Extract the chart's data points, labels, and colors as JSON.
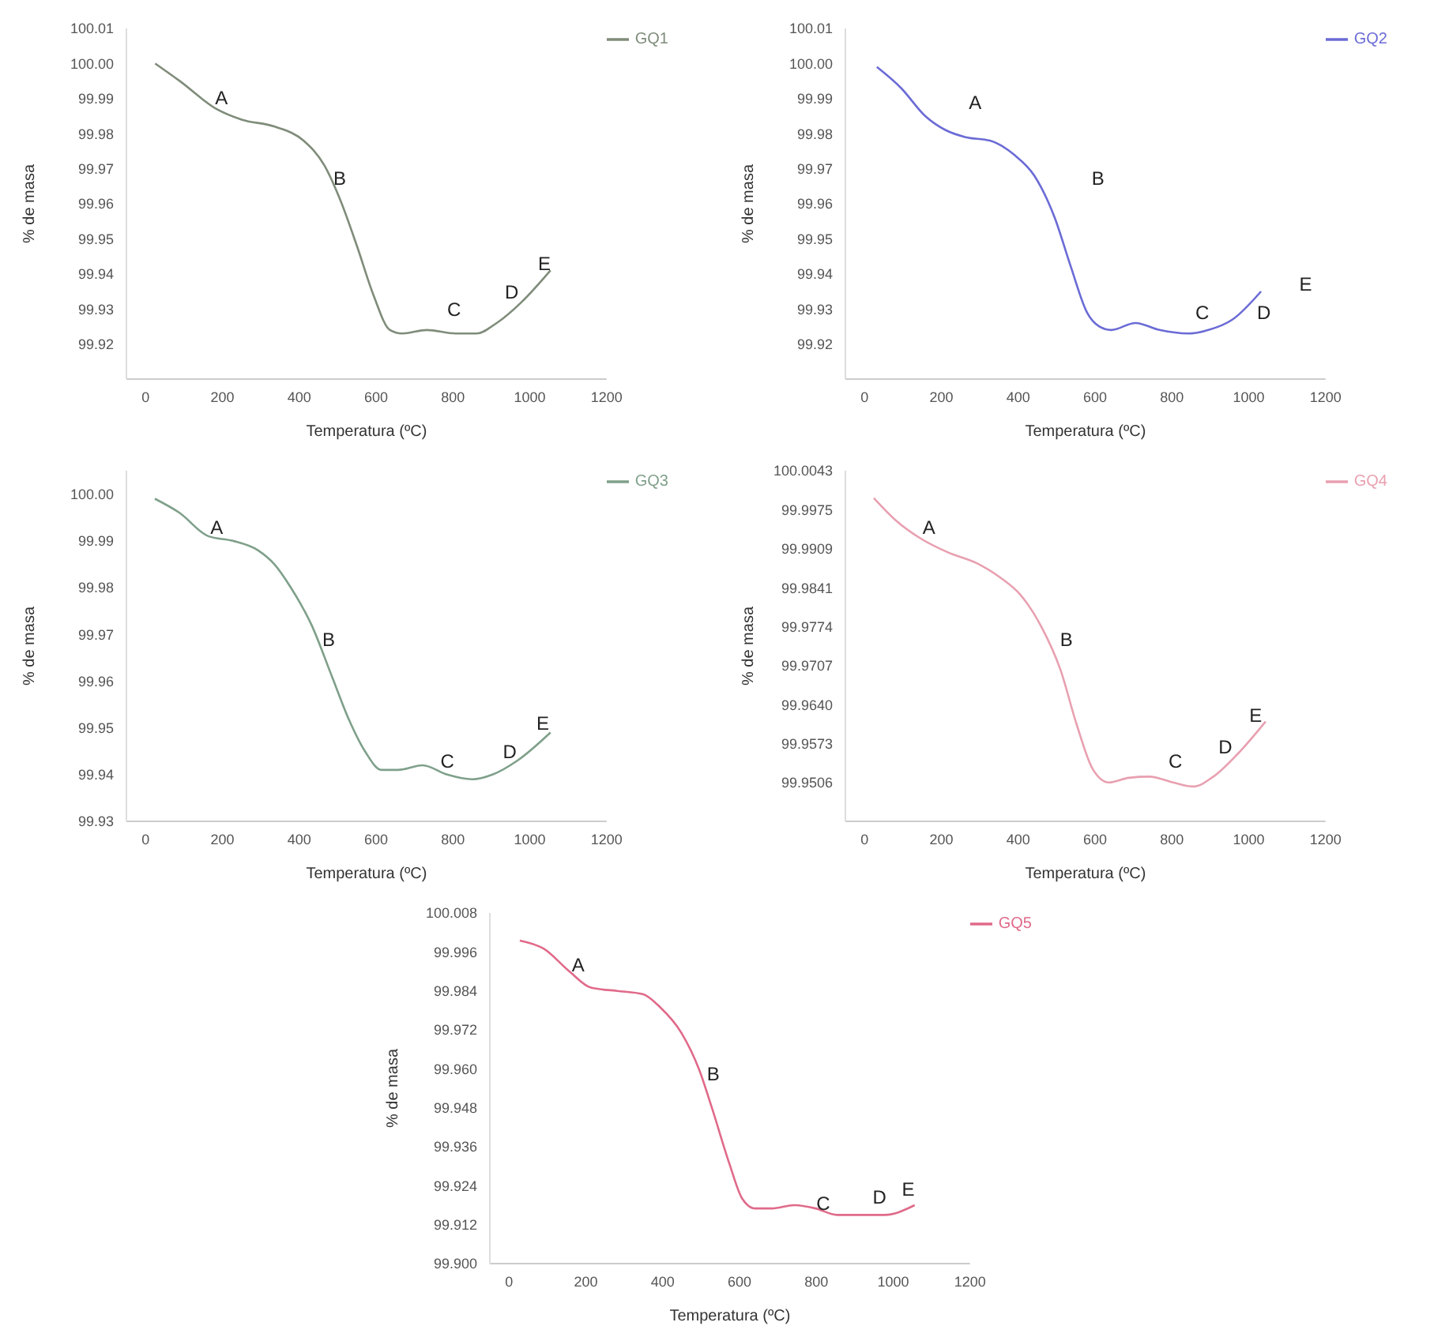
{
  "chart_data": [
    {
      "type": "line",
      "xlabel": "Temperatura (ºC)",
      "ylabel": "% de masa",
      "legend": "top right",
      "marker": "none",
      "grid": false,
      "xlim": [
        -50,
        1200
      ],
      "xticks": [
        0,
        200,
        400,
        600,
        800,
        1000,
        1200
      ],
      "ylim": [
        99.91,
        100.01
      ],
      "yticks": [
        99.92,
        99.93,
        99.94,
        99.95,
        99.96,
        99.97,
        99.98,
        99.99,
        {
          "value": 100,
          "label": "100.00"
        },
        100.01
      ],
      "series": [
        {
          "name": "GQ1",
          "color": "#7f8c7a",
          "x": [
            25,
            89,
            185,
            250,
            336,
            411,
            465,
            507,
            550,
            593,
            636,
            668,
            732,
            807,
            861,
            914,
            979,
            1054
          ],
          "values": [
            100.0,
            99.995,
            99.987,
            99.984,
            99.982,
            99.978,
            99.971,
            99.961,
            99.948,
            99.934,
            99.924,
            99.923,
            99.924,
            99.923,
            99.923,
            99.926,
            99.932,
            99.941
          ]
        }
      ],
      "annotations": [
        "A",
        "B",
        "C",
        "D",
        "E"
      ]
    },
    {
      "type": "line",
      "xlabel": "Temperatura (ºC)",
      "ylabel": "% de masa",
      "legend": "top right",
      "marker": "none",
      "grid": false,
      "xlim": [
        -50,
        1200
      ],
      "xticks": [
        0,
        200,
        400,
        600,
        800,
        1000,
        1200
      ],
      "ylim": [
        99.91,
        100.01
      ],
      "yticks": [
        99.92,
        99.93,
        99.94,
        99.95,
        99.96,
        99.97,
        99.98,
        99.99,
        {
          "value": 100,
          "label": "100.00"
        },
        100.01
      ],
      "series": [
        {
          "name": "GQ2",
          "color": "#6b6bd6",
          "x": [
            32,
            95,
            158,
            211,
            263,
            326,
            389,
            442,
            495,
            537,
            579,
            611,
            642,
            705,
            768,
            842,
            895,
            958,
            1032
          ],
          "values": [
            99.999,
            99.993,
            99.985,
            99.981,
            99.979,
            99.978,
            99.974,
            99.968,
            99.956,
            99.942,
            99.929,
            99.925,
            99.924,
            99.926,
            99.924,
            99.923,
            99.924,
            99.927,
            99.935
          ]
        }
      ],
      "annotations": [
        "A",
        "B",
        "C",
        "D",
        "E"
      ]
    },
    {
      "type": "line",
      "xlabel": "Temperatura (ºC)",
      "ylabel": "% de masa",
      "legend": "top right",
      "marker": "none",
      "grid": false,
      "xlim": [
        -50,
        1200
      ],
      "xticks": [
        0,
        200,
        400,
        600,
        800,
        1000,
        1200
      ],
      "ylim": [
        99.93,
        100.005
      ],
      "yticks": [
        99.93,
        99.94,
        99.95,
        99.96,
        99.97,
        99.98,
        99.99,
        {
          "value": 100,
          "label": "100.00"
        }
      ],
      "series": [
        {
          "name": "GQ3",
          "color": "#7fa08a",
          "x": [
            24,
            88,
            163,
            227,
            292,
            335,
            378,
            432,
            485,
            528,
            571,
            614,
            657,
            721,
            785,
            850,
            903,
            968,
            1054
          ],
          "values": [
            99.999,
            99.996,
            99.991,
            99.99,
            99.988,
            99.985,
            99.98,
            99.972,
            99.961,
            99.952,
            99.945,
            99.941,
            99.941,
            99.942,
            99.94,
            99.939,
            99.94,
            99.943,
            99.949
          ]
        }
      ],
      "annotations": [
        "A",
        "B",
        "C",
        "D",
        "E"
      ]
    },
    {
      "type": "line",
      "xlabel": "Temperatura (ºC)",
      "ylabel": "% de masa",
      "legend": "top right",
      "marker": "none",
      "grid": false,
      "xlim": [
        -50,
        1200
      ],
      "xticks": [
        0,
        200,
        400,
        600,
        800,
        1000,
        1200
      ],
      "ylim": [
        99.9439,
        100.0043
      ],
      "yticks": [
        99.9506,
        99.9573,
        {
          "value": 99.964,
          "label": "99.9640"
        },
        99.9707,
        99.9774,
        99.9841,
        99.9909,
        99.9975,
        100.0043
      ],
      "series": [
        {
          "name": "GQ4",
          "color": "#e8a0b0",
          "x": [
            24,
            82,
            144,
            218,
            291,
            353,
            406,
            458,
            510,
            552,
            594,
            636,
            688,
            741,
            803,
            856,
            908,
            971,
            1044
          ],
          "values": [
            99.9996,
            99.9957,
            99.9927,
            99.9902,
            99.9884,
            99.9859,
            99.9829,
            99.9777,
            99.97,
            99.9606,
            99.9529,
            99.9506,
            99.9514,
            99.9516,
            99.9506,
            99.9499,
            99.9516,
            99.9555,
            99.9611
          ]
        }
      ],
      "annotations": [
        "A",
        "B",
        "C",
        "D",
        "E"
      ]
    },
    {
      "type": "line",
      "xlabel": "Temperatura (ºC)",
      "ylabel": "% de masa",
      "legend": "top right",
      "marker": "none",
      "grid": false,
      "xlim": [
        -50,
        1200
      ],
      "xticks": [
        0,
        200,
        400,
        600,
        800,
        1000,
        1200
      ],
      "ylim": [
        99.9,
        100.008
      ],
      "yticks": [
        {
          "value": 99.9,
          "label": "99.900"
        },
        99.912,
        99.924,
        99.936,
        99.948,
        {
          "value": 99.96,
          "label": "99.960"
        },
        99.972,
        99.984,
        99.996,
        100.008
      ],
      "series": [
        {
          "name": "GQ5",
          "color": "#e06a8a",
          "x": [
            28,
            90,
            157,
            213,
            281,
            348,
            393,
            449,
            494,
            528,
            573,
            607,
            640,
            685,
            742,
            798,
            854,
            921,
            978,
            1056
          ],
          "values": [
            99.9995,
            99.997,
            99.99,
            99.985,
            99.984,
            99.983,
            99.979,
            99.971,
            99.96,
            99.948,
            99.931,
            99.92,
            99.917,
            99.917,
            99.918,
            99.917,
            99.915,
            99.915,
            99.915,
            99.918
          ]
        }
      ],
      "annotations": [
        "A",
        "B",
        "C",
        "D",
        "E"
      ]
    }
  ]
}
